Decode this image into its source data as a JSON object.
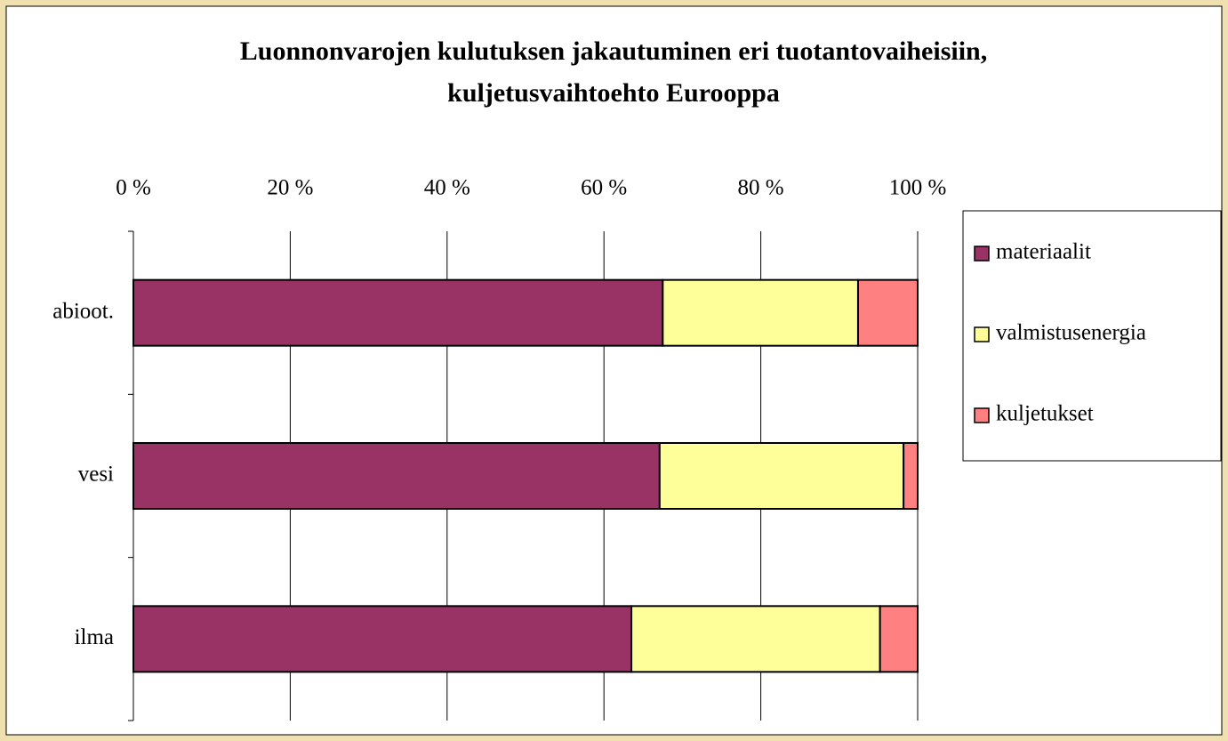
{
  "chart_data": {
    "type": "stacked_bar_horizontal",
    "title": [
      "Luonnonvarojen kulutuksen jakautuminen eri tuotantovaiheisiin,",
      "kuljetusvaihtoehto Eurooppa"
    ],
    "categories": [
      "abioot.",
      "vesi",
      "ilma"
    ],
    "series": [
      {
        "name": "materiaalit",
        "color": "#993366",
        "values": [
          67.5,
          67.1,
          63.5
        ]
      },
      {
        "name": "valmistusenergia",
        "color": "#ffff99",
        "values": [
          24.9,
          31.1,
          31.7
        ]
      },
      {
        "name": "kuljetukset",
        "color": "#ff8080",
        "values": [
          7.6,
          1.8,
          4.8
        ]
      }
    ],
    "xlim": [
      0,
      100
    ],
    "xticks": [
      {
        "value": 0,
        "label": "0 %"
      },
      {
        "value": 20,
        "label": "20 %"
      },
      {
        "value": 40,
        "label": "40 %"
      },
      {
        "value": 60,
        "label": "60 %"
      },
      {
        "value": 80,
        "label": "80 %"
      },
      {
        "value": 100,
        "label": "100 %"
      }
    ],
    "grid": true,
    "legend": "right"
  }
}
